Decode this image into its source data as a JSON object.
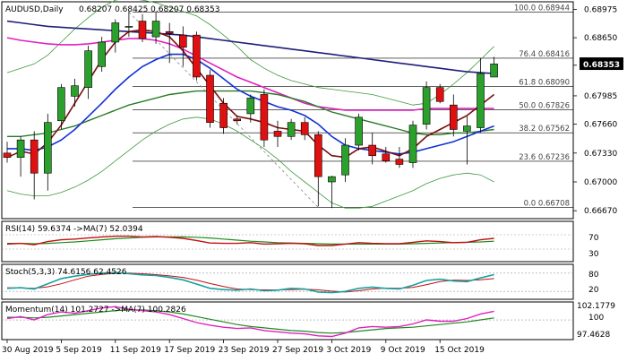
{
  "header": {
    "symbol_tf": "AUDUSD,Daily",
    "ohlc": "0.68207 0.68425 0.68207 0.68353"
  },
  "colors": {
    "bull": "#2ca02c",
    "bear": "#e01010",
    "sma_fast": "#7b0f0f",
    "sma_mid": "#1230d8",
    "sma_slow": "#1e1e7a",
    "sma_pink": "#e020c0",
    "sma_green": "#2a7a2a",
    "bollinger": "#3c9a3c",
    "rsi": "#c01010",
    "rsi_ma": "#1f8a1f",
    "stoch_main": "#1aa0a0",
    "stoch_signal": "#c01010",
    "mom": "#e020c0",
    "mom_ma": "#1f8a1f"
  },
  "price_axis": {
    "ticks": [
      "0.68975",
      "0.68650",
      "0.68335",
      "0.67985",
      "0.67660",
      "0.67330",
      "0.67000",
      "0.66670"
    ],
    "current_price": "0.68353"
  },
  "fib_levels": [
    {
      "label": "100.0 0.68944",
      "value": 0.68944
    },
    {
      "label": "76.4 0.68416",
      "value": 0.68416
    },
    {
      "label": "61.8 0.68090",
      "value": 0.6809
    },
    {
      "label": "50.0 0.67826",
      "value": 0.67826
    },
    {
      "label": "38.2 0.67562",
      "value": 0.67562
    },
    {
      "label": "23.6 0.67236",
      "value": 0.67236
    },
    {
      "label": "0.0 0.66708",
      "value": 0.66708
    }
  ],
  "indicators": {
    "rsi": {
      "label": "RSI(14) 59.6374 ->MA(7) 52.0394",
      "ticks": [
        "70",
        "30"
      ],
      "levels": [
        70,
        30
      ]
    },
    "stoch": {
      "label": "Stoch(5,3,3) 74.6156 62.4526",
      "ticks": [
        "80",
        "20"
      ],
      "levels": [
        80,
        20
      ]
    },
    "momentum": {
      "label": "Momentum(14) 101.2727 ->MA(7) 100.2826",
      "ticks": [
        "102.1779",
        "100",
        "97.4628"
      ]
    }
  },
  "time_axis": {
    "labels": [
      "30 Aug 2019",
      "5 Sep 2019",
      "11 Sep 2019",
      "17 Sep 2019",
      "23 Sep 2019",
      "27 Sep 2019",
      "3 Oct 2019",
      "9 Oct 2019",
      "15 Oct 2019"
    ],
    "label_candle_index": [
      0,
      4,
      8,
      12,
      16,
      20,
      24,
      28,
      32
    ]
  },
  "chart_data": {
    "type": "candlestick",
    "symbol": "AUDUSD",
    "timeframe": "Daily",
    "ylim": [
      0.666,
      0.6902
    ],
    "candles": [
      {
        "o": 0.6733,
        "h": 0.6746,
        "l": 0.6722,
        "c": 0.6728
      },
      {
        "o": 0.6728,
        "h": 0.6752,
        "l": 0.6706,
        "c": 0.6748
      },
      {
        "o": 0.6748,
        "h": 0.6758,
        "l": 0.668,
        "c": 0.671
      },
      {
        "o": 0.671,
        "h": 0.6778,
        "l": 0.669,
        "c": 0.6768
      },
      {
        "o": 0.677,
        "h": 0.6812,
        "l": 0.676,
        "c": 0.6808
      },
      {
        "o": 0.6798,
        "h": 0.6818,
        "l": 0.6786,
        "c": 0.681
      },
      {
        "o": 0.6808,
        "h": 0.6856,
        "l": 0.6795,
        "c": 0.685
      },
      {
        "o": 0.6832,
        "h": 0.6866,
        "l": 0.6826,
        "c": 0.686
      },
      {
        "o": 0.686,
        "h": 0.6886,
        "l": 0.6848,
        "c": 0.6882
      },
      {
        "o": 0.6878,
        "h": 0.6895,
        "l": 0.6866,
        "c": 0.6878
      },
      {
        "o": 0.6884,
        "h": 0.6892,
        "l": 0.686,
        "c": 0.6864
      },
      {
        "o": 0.6866,
        "h": 0.6894,
        "l": 0.6858,
        "c": 0.6884
      },
      {
        "o": 0.6872,
        "h": 0.6882,
        "l": 0.6836,
        "c": 0.687
      },
      {
        "o": 0.6868,
        "h": 0.6878,
        "l": 0.6832,
        "c": 0.6854
      },
      {
        "o": 0.6868,
        "h": 0.6872,
        "l": 0.6816,
        "c": 0.682
      },
      {
        "o": 0.6822,
        "h": 0.6828,
        "l": 0.6762,
        "c": 0.6768
      },
      {
        "o": 0.679,
        "h": 0.6796,
        "l": 0.6755,
        "c": 0.6762
      },
      {
        "o": 0.6772,
        "h": 0.6776,
        "l": 0.6766,
        "c": 0.677
      },
      {
        "o": 0.6778,
        "h": 0.68,
        "l": 0.6768,
        "c": 0.6796
      },
      {
        "o": 0.68,
        "h": 0.6806,
        "l": 0.674,
        "c": 0.6748
      },
      {
        "o": 0.6758,
        "h": 0.677,
        "l": 0.674,
        "c": 0.6752
      },
      {
        "o": 0.6752,
        "h": 0.6772,
        "l": 0.6748,
        "c": 0.6768
      },
      {
        "o": 0.6768,
        "h": 0.6774,
        "l": 0.6748,
        "c": 0.6754
      },
      {
        "o": 0.6754,
        "h": 0.6758,
        "l": 0.6672,
        "c": 0.6706
      },
      {
        "o": 0.67,
        "h": 0.6707,
        "l": 0.667,
        "c": 0.6706
      },
      {
        "o": 0.6708,
        "h": 0.675,
        "l": 0.67,
        "c": 0.6742
      },
      {
        "o": 0.6742,
        "h": 0.6778,
        "l": 0.6736,
        "c": 0.6774
      },
      {
        "o": 0.6742,
        "h": 0.6756,
        "l": 0.672,
        "c": 0.673
      },
      {
        "o": 0.6732,
        "h": 0.674,
        "l": 0.6722,
        "c": 0.6724
      },
      {
        "o": 0.6726,
        "h": 0.674,
        "l": 0.6716,
        "c": 0.672
      },
      {
        "o": 0.6722,
        "h": 0.677,
        "l": 0.6716,
        "c": 0.6765
      },
      {
        "o": 0.6766,
        "h": 0.6815,
        "l": 0.676,
        "c": 0.6808
      },
      {
        "o": 0.6808,
        "h": 0.6812,
        "l": 0.679,
        "c": 0.6792
      },
      {
        "o": 0.6788,
        "h": 0.68,
        "l": 0.6752,
        "c": 0.676
      },
      {
        "o": 0.6758,
        "h": 0.6775,
        "l": 0.672,
        "c": 0.6764
      },
      {
        "o": 0.6762,
        "h": 0.6842,
        "l": 0.6756,
        "c": 0.6824
      },
      {
        "o": 0.682,
        "h": 0.6843,
        "l": 0.682,
        "c": 0.6835
      }
    ],
    "series": [
      {
        "key": "sma_fast",
        "values": [
          0.6728,
          0.6735,
          0.6732,
          0.6745,
          0.6765,
          0.679,
          0.6815,
          0.684,
          0.686,
          0.6872,
          0.6874,
          0.6872,
          0.6866,
          0.685,
          0.683,
          0.681,
          0.679,
          0.6775,
          0.6772,
          0.6768,
          0.6762,
          0.676,
          0.6758,
          0.6742,
          0.673,
          0.6728,
          0.6738,
          0.674,
          0.6735,
          0.673,
          0.6738,
          0.6752,
          0.676,
          0.6768,
          0.6776,
          0.6788,
          0.68
        ]
      },
      {
        "key": "sma_mid",
        "values": [
          0.6738,
          0.6738,
          0.6736,
          0.674,
          0.6748,
          0.676,
          0.6775,
          0.679,
          0.6806,
          0.682,
          0.6832,
          0.684,
          0.6846,
          0.6846,
          0.684,
          0.683,
          0.6818,
          0.6806,
          0.6798,
          0.6792,
          0.6786,
          0.6782,
          0.6776,
          0.6766,
          0.6752,
          0.6742,
          0.6738,
          0.6736,
          0.6734,
          0.6732,
          0.6734,
          0.6738,
          0.6742,
          0.6746,
          0.6752,
          0.6758,
          0.6764
        ]
      },
      {
        "key": "sma_slow",
        "values": [
          0.6884,
          0.6882,
          0.688,
          0.6878,
          0.6877,
          0.6876,
          0.6875,
          0.6874,
          0.6873,
          0.6872,
          0.6871,
          0.687,
          0.6869,
          0.6868,
          0.6866,
          0.6864,
          0.6862,
          0.686,
          0.6858,
          0.6856,
          0.6854,
          0.6852,
          0.685,
          0.6848,
          0.6846,
          0.6844,
          0.6842,
          0.684,
          0.6838,
          0.6836,
          0.6834,
          0.6832,
          0.683,
          0.6828,
          0.6826,
          0.6825,
          0.6824
        ]
      },
      {
        "key": "sma_pink",
        "values": [
          0.6865,
          0.6862,
          0.686,
          0.6858,
          0.6857,
          0.6857,
          0.6858,
          0.686,
          0.6862,
          0.6864,
          0.6864,
          0.6862,
          0.6858,
          0.6852,
          0.6844,
          0.6836,
          0.6828,
          0.682,
          0.6814,
          0.6808,
          0.6802,
          0.6796,
          0.679,
          0.6786,
          0.6784,
          0.6782,
          0.6782,
          0.6782,
          0.6782,
          0.6782,
          0.6782,
          0.6784,
          0.6784,
          0.6784,
          0.6784,
          0.6784,
          0.6784
        ]
      },
      {
        "key": "sma_green",
        "values": [
          0.6752,
          0.6752,
          0.6754,
          0.6756,
          0.676,
          0.6764,
          0.677,
          0.6776,
          0.6782,
          0.6788,
          0.6792,
          0.6796,
          0.68,
          0.6802,
          0.6804,
          0.6804,
          0.6804,
          0.6804,
          0.6804,
          0.6802,
          0.68,
          0.6796,
          0.6792,
          0.6786,
          0.678,
          0.6776,
          0.6772,
          0.6768,
          0.6764,
          0.676,
          0.6756,
          0.6754,
          0.6754,
          0.6756,
          0.6756,
          0.6758,
          0.676
        ]
      },
      {
        "key": "bollinger_up",
        "values": [
          0.6825,
          0.683,
          0.6835,
          0.6845,
          0.686,
          0.6875,
          0.6888,
          0.69,
          0.6908,
          0.691,
          0.6908,
          0.6905,
          0.69,
          0.6895,
          0.689,
          0.688,
          0.6868,
          0.6855,
          0.684,
          0.683,
          0.6822,
          0.6816,
          0.6812,
          0.6808,
          0.6806,
          0.6804,
          0.6802,
          0.68,
          0.6796,
          0.6792,
          0.6788,
          0.679,
          0.68,
          0.6812,
          0.6825,
          0.684,
          0.6855
        ]
      },
      {
        "key": "bollinger_dn",
        "values": [
          0.669,
          0.6686,
          0.6684,
          0.6684,
          0.6688,
          0.6694,
          0.6702,
          0.6712,
          0.6724,
          0.6736,
          0.6748,
          0.6758,
          0.6766,
          0.6772,
          0.6774,
          0.6772,
          0.6766,
          0.6758,
          0.6748,
          0.6738,
          0.6726,
          0.6712,
          0.67,
          0.6688,
          0.6676,
          0.667,
          0.667,
          0.6672,
          0.6678,
          0.6684,
          0.669,
          0.6698,
          0.6704,
          0.6708,
          0.671,
          0.6708,
          0.67
        ]
      },
      {
        "key": "rsi",
        "values": [
          44,
          46,
          42,
          51,
          56,
          58,
          61,
          64,
          66,
          66,
          64,
          65,
          63,
          60,
          54,
          47,
          46,
          46,
          48,
          44,
          45,
          46,
          45,
          40,
          40,
          44,
          48,
          46,
          45,
          45,
          49,
          53,
          51,
          48,
          49,
          56,
          60
        ]
      },
      {
        "key": "rsi_ma",
        "values": [
          46,
          46,
          45,
          46,
          48,
          50,
          53,
          56,
          59,
          61,
          63,
          64,
          64,
          64,
          63,
          61,
          58,
          55,
          52,
          50,
          48,
          47,
          46,
          45,
          44,
          44,
          44,
          44,
          44,
          44,
          45,
          46,
          47,
          48,
          49,
          50,
          52
        ]
      },
      {
        "key": "stoch_main",
        "values": [
          30,
          32,
          28,
          45,
          62,
          70,
          76,
          80,
          82,
          78,
          74,
          72,
          66,
          58,
          44,
          30,
          26,
          24,
          28,
          22,
          24,
          30,
          28,
          18,
          16,
          20,
          30,
          34,
          30,
          28,
          40,
          56,
          60,
          54,
          52,
          64,
          75
        ]
      },
      {
        "key": "stoch_signal",
        "values": [
          32,
          31,
          30,
          35,
          45,
          58,
          70,
          76,
          79,
          80,
          78,
          75,
          71,
          66,
          57,
          46,
          36,
          28,
          26,
          25,
          25,
          26,
          27,
          25,
          21,
          18,
          22,
          28,
          31,
          30,
          33,
          42,
          52,
          57,
          56,
          58,
          62
        ]
      },
      {
        "key": "momentum",
        "values": [
          100.2,
          100.5,
          100.0,
          100.8,
          101.2,
          101.0,
          101.4,
          101.8,
          102.0,
          101.6,
          101.4,
          101.2,
          100.8,
          100.2,
          99.6,
          99.2,
          98.9,
          98.7,
          98.8,
          98.4,
          98.2,
          98.0,
          97.9,
          97.6,
          97.5,
          98.0,
          98.8,
          99.0,
          98.9,
          99.0,
          99.4,
          100.0,
          99.8,
          99.8,
          100.2,
          100.9,
          101.3
        ]
      },
      {
        "key": "momentum_ma",
        "values": [
          100.4,
          100.4,
          100.3,
          100.4,
          100.6,
          100.8,
          101.0,
          101.2,
          101.4,
          101.5,
          101.5,
          101.4,
          101.2,
          100.9,
          100.5,
          100.1,
          99.7,
          99.3,
          99.0,
          98.8,
          98.6,
          98.4,
          98.3,
          98.1,
          98.0,
          98.1,
          98.3,
          98.5,
          98.7,
          98.8,
          98.9,
          99.1,
          99.3,
          99.5,
          99.7,
          100.0,
          100.3
        ]
      }
    ],
    "fib_line": {
      "from_index": 9,
      "to_index": 23,
      "from": 0.68944,
      "to": 0.66708
    }
  }
}
